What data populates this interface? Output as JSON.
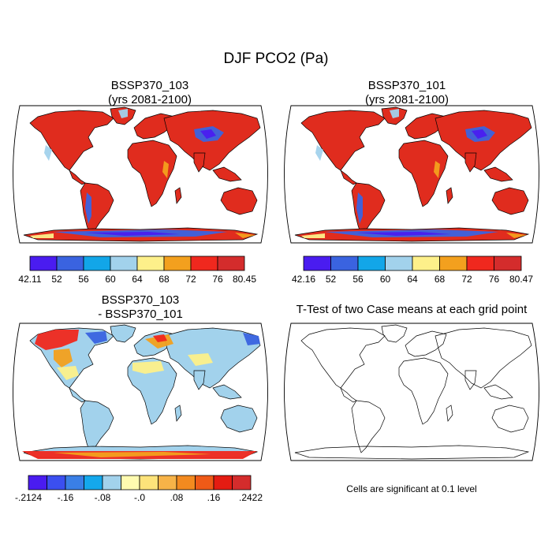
{
  "figure": {
    "title": "DJF PCO2 (Pa)"
  },
  "panels": [
    {
      "id": "p1",
      "title_line1": "BSSP370_103",
      "title_line2": "(yrs 2081-2100)",
      "kind": "absolute",
      "colorbar": {
        "colors": [
          "#4a1cf0",
          "#3a63e0",
          "#12a6e8",
          "#a2d2ec",
          "#fdf08a",
          "#f3a01e",
          "#f0281e",
          "#d42c2c"
        ],
        "labels": [
          "42.11",
          "52",
          "56",
          "60",
          "64",
          "68",
          "72",
          "76",
          "80.45"
        ]
      }
    },
    {
      "id": "p2",
      "title_line1": "BSSP370_101",
      "title_line2": "(yrs 2081-2100)",
      "kind": "absolute",
      "colorbar": {
        "colors": [
          "#4a1cf0",
          "#3a63e0",
          "#12a6e8",
          "#a2d2ec",
          "#fdf08a",
          "#f3a01e",
          "#f0281e",
          "#d42c2c"
        ],
        "labels": [
          "42.16",
          "52",
          "56",
          "60",
          "64",
          "68",
          "72",
          "76",
          "80.47"
        ]
      }
    },
    {
      "id": "p3",
      "title_line1": "BSSP370_103",
      "title_line2": "- BSSP370_101",
      "kind": "difference",
      "colorbar": {
        "colors": [
          "#4a1cf0",
          "#3b4ff0",
          "#3a7fe6",
          "#14a8ec",
          "#a2d2ec",
          "#fffbb0",
          "#fde37a",
          "#f7b348",
          "#f38a1f",
          "#ef5a17",
          "#e41c12",
          "#d42c2c"
        ],
        "labels": [
          "-.2124",
          "-.16",
          "-.08",
          "-.0",
          ".08",
          ".16",
          ".2422"
        ]
      }
    },
    {
      "id": "p4",
      "title_line1": "T-Test of two Case means at each grid point",
      "title_line2": "",
      "kind": "ttest",
      "note": "Cells are significant at 0.1 level"
    }
  ],
  "colors": {
    "land_high": "#e02c1e",
    "land_red": "#f0281e",
    "orange": "#f3a01e",
    "yellow": "#fdf08a",
    "lightblue": "#a2d2ec",
    "cyan": "#12a6e8",
    "blue": "#3a63e0",
    "violet": "#4a1cf0"
  }
}
